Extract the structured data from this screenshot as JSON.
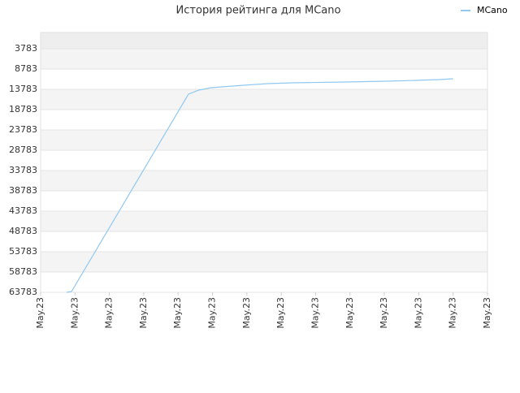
{
  "chart_data": {
    "type": "line",
    "title": "История рейтинга для MCano",
    "x": [
      0.76,
      0.9,
      4.3,
      4.6,
      4.96,
      5.9,
      6.6,
      7.33,
      8.86,
      10.05,
      10.9,
      11.6,
      12.0
    ],
    "series": [
      {
        "name": "MCano",
        "color": "#90c8f0",
        "values": [
          63783,
          63583,
          14983,
          13983,
          13383,
          12783,
          12383,
          12183,
          11983,
          11783,
          11583,
          11383,
          11183
        ]
      }
    ],
    "xlim": [
      0,
      13
    ],
    "xticks": [
      {
        "value": 0,
        "label": "May.23"
      },
      {
        "value": 1,
        "label": "May.23"
      },
      {
        "value": 2,
        "label": "May.23"
      },
      {
        "value": 3,
        "label": "May.23"
      },
      {
        "value": 4,
        "label": "May.23"
      },
      {
        "value": 5,
        "label": "May.23"
      },
      {
        "value": 6,
        "label": "May.23"
      },
      {
        "value": 7,
        "label": "May.23"
      },
      {
        "value": 8,
        "label": "May.23"
      },
      {
        "value": 9,
        "label": "May.23"
      },
      {
        "value": 10,
        "label": "May.23"
      },
      {
        "value": 11,
        "label": "May.23"
      },
      {
        "value": 12,
        "label": "May.23"
      },
      {
        "value": 13,
        "label": "May.23"
      }
    ],
    "ylim": [
      63783,
      -217
    ],
    "yticks": [
      3783,
      8783,
      13783,
      18783,
      23783,
      28783,
      33783,
      38783,
      43783,
      48783,
      53783,
      58783,
      63783
    ],
    "grid": true,
    "legend": "top-right"
  }
}
